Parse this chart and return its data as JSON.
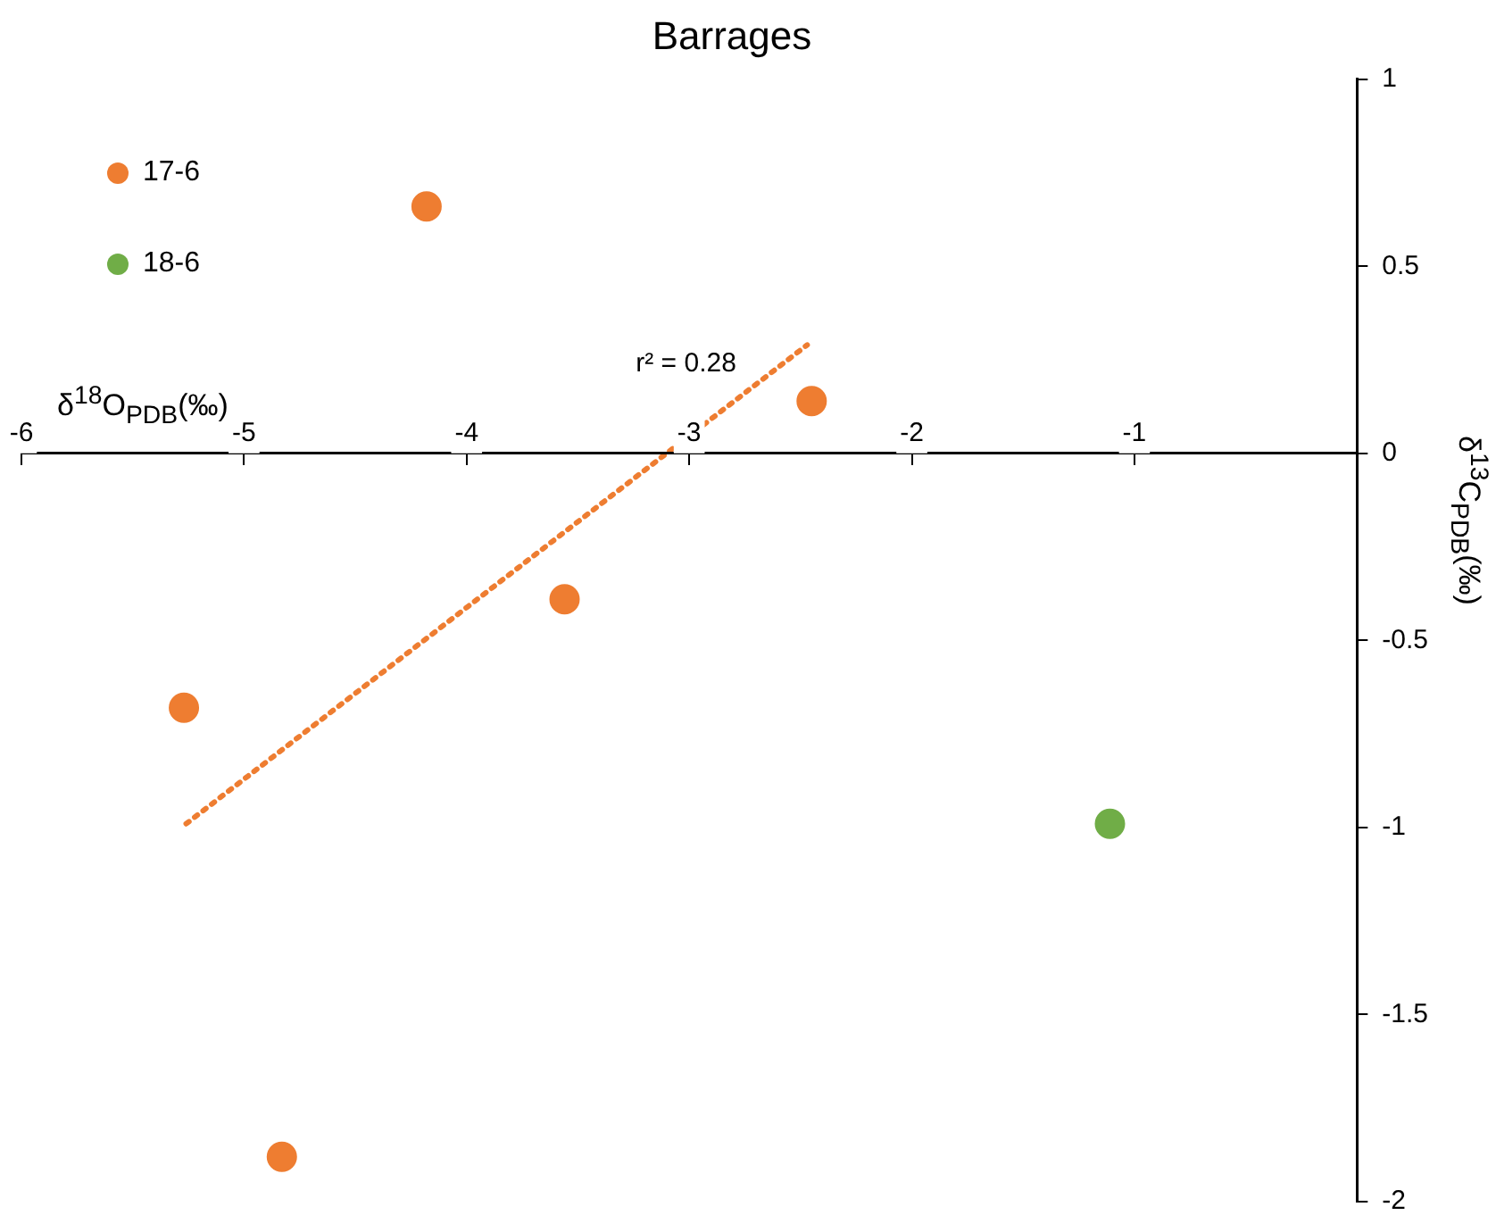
{
  "chart_data": {
    "type": "scatter",
    "title": "Barrages",
    "xlabel": "δ$^{18}$O$_{PDB}$(‰)",
    "ylabel": "δ$^{13}$C$_{PDB}$(‰)",
    "xlim": [
      -6,
      0
    ],
    "xticks": [
      -6,
      -5,
      -4,
      -3,
      -2,
      -1
    ],
    "ylim": [
      -2,
      1
    ],
    "yticks": [
      -2,
      -1.5,
      -1,
      -0.5,
      0,
      0.5,
      1
    ],
    "grid": false,
    "legend": "top left",
    "marker": "circle",
    "series": [
      {
        "name": "17-6",
        "color": "#ee7d31",
        "x": [
          -4.18,
          -2.45,
          -3.56,
          -5.27,
          -4.83
        ],
        "values": [
          0.66,
          0.14,
          -0.39,
          -0.68,
          -1.88
        ]
      },
      {
        "name": "18-6",
        "color": "#70ad47",
        "x": [
          -1.11
        ],
        "values": [
          -0.99
        ]
      },
      {
        "type": "line",
        "color": "#ee7d31",
        "line_style": "dotted",
        "marker": "none",
        "x": [
          -5.26,
          -2.47
        ],
        "values": [
          -0.99,
          0.29
        ]
      }
    ],
    "annotations": [
      "r² = 0.28"
    ]
  }
}
